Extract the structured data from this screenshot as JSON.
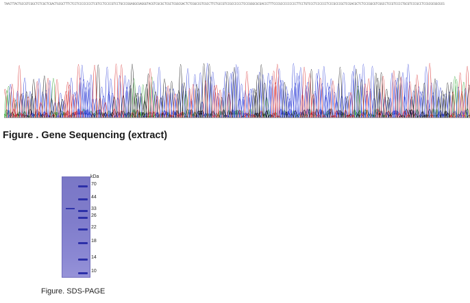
{
  "figure1": {
    "caption": "Figure . Gene Sequencing (extract)",
    "sequence_text": "TAACTTACTGCCGTCGGCTCTCGCTCGACTGCGCTTTCTCCTCCCCCCCCTCGTCCTCCCCGTCCTGCCCGGAGGCGAGGGTACGTCGCGCTCGCTCGGCGACTCTCGGCCGTCGCCTTCTGCCGTCCGCCCCCCTCCCGGGCGCGACCCTTTCCCGCCCCCCCCCTTCCTGTCCCTCCCCCCTCCCGCCCGCTCCGACGCTCTCCCGGCGTCGGCCTCCGTCCCCTGCGTCCCGCCTCCGCGCGGCGCG",
    "trace_colors": {
      "A": "#2ca02c",
      "C": "#2a3ad6",
      "G": "#111111",
      "T": "#d62728"
    }
  },
  "figure2": {
    "caption": "Figure. SDS-PAGE",
    "unit_label": "kDa",
    "markers": [
      "70",
      "44",
      "33",
      "26",
      "22",
      "18",
      "14",
      "10"
    ],
    "ladder_color": "#2b2fa8",
    "gel_color": "#807dcb"
  }
}
